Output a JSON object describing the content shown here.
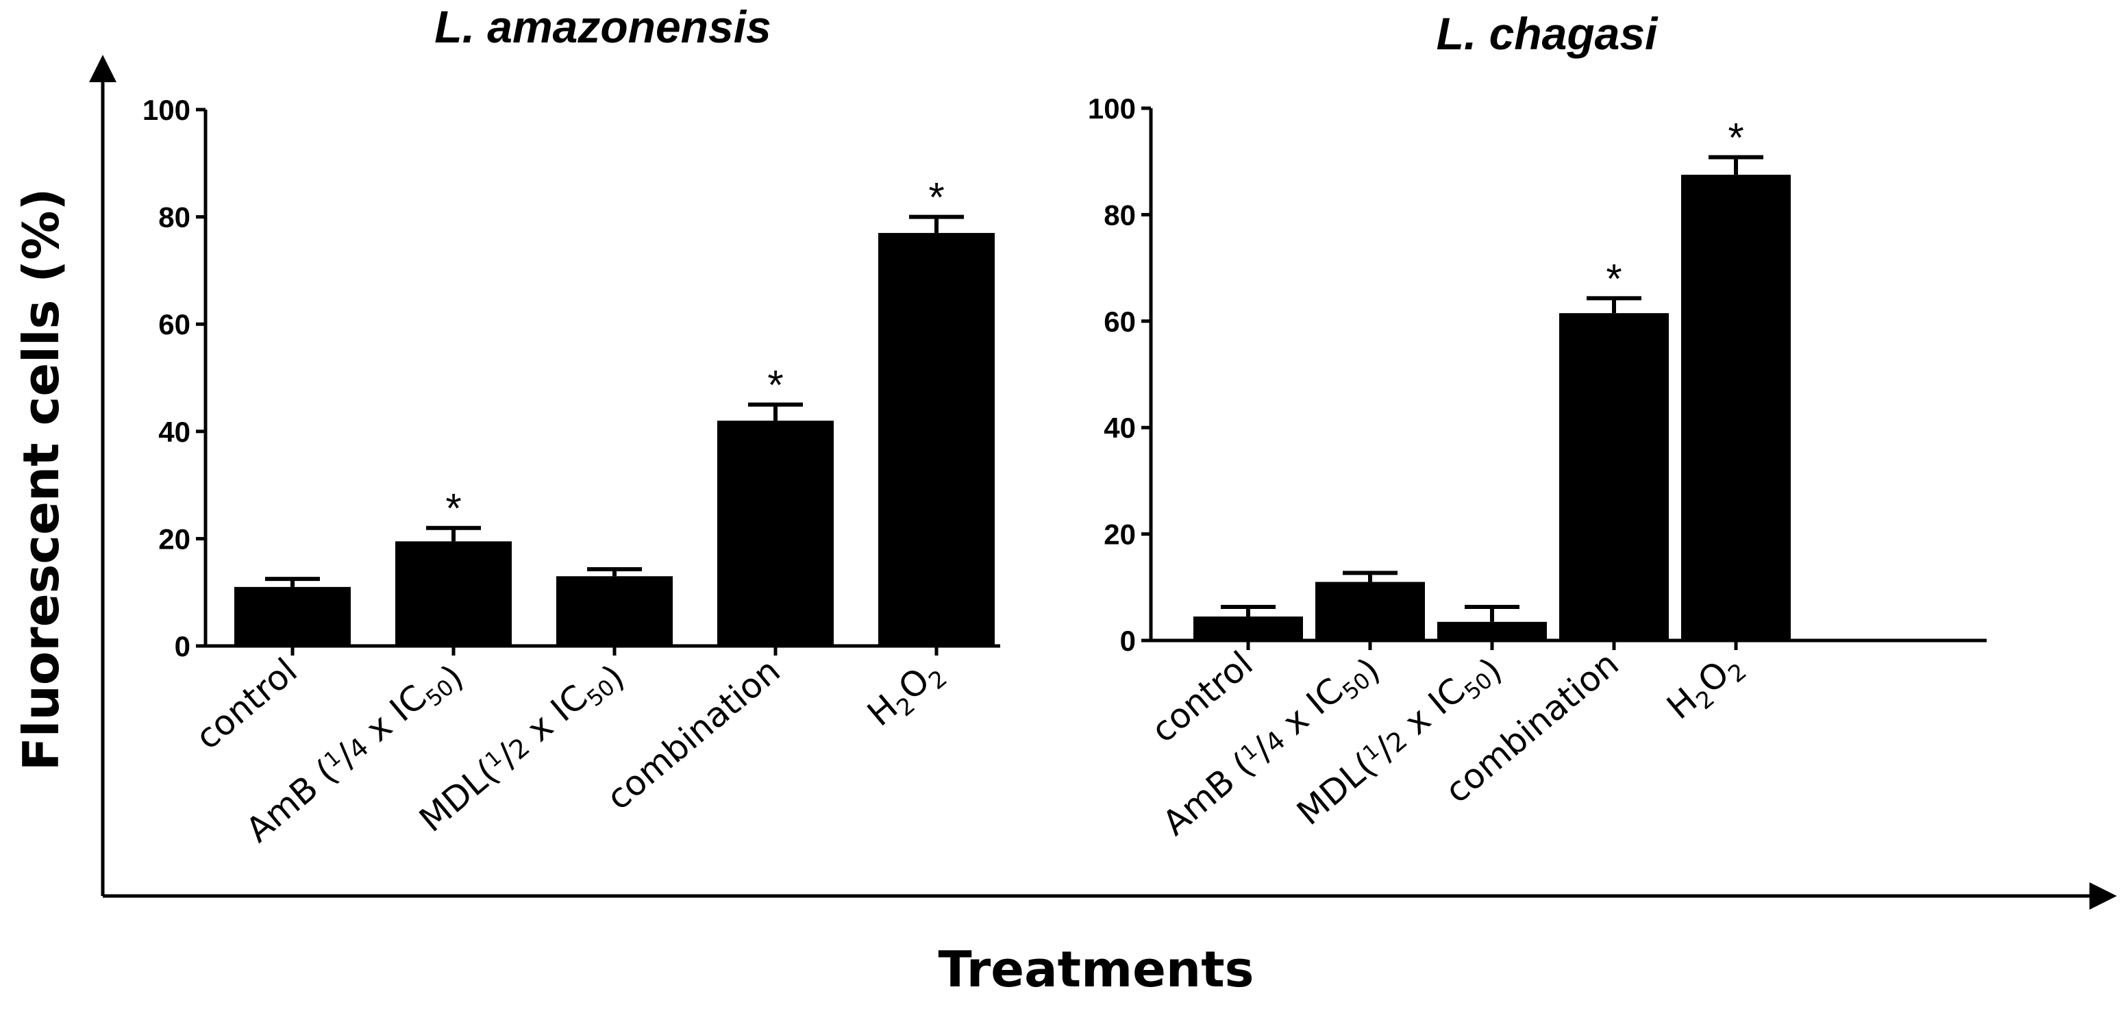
{
  "figure": {
    "y_title": "Fluorescent cells (%)",
    "x_title": "Treatments"
  },
  "chart_data": [
    {
      "type": "bar",
      "title": "L. amazonensis",
      "ylabel": "Fluorescent cells (%)",
      "xlabel": "Treatments",
      "ylim": [
        0,
        100
      ],
      "yticks": [
        "0",
        "20",
        "40",
        "60",
        "80",
        "100"
      ],
      "categories": [
        "control",
        "AmB (1/4 x IC50)",
        "MDL(1/2 x IC50)",
        "combination",
        "H2O2"
      ],
      "values": [
        11,
        19.5,
        13,
        42,
        77
      ],
      "errors": [
        1.5,
        2.5,
        1.3,
        3,
        3
      ],
      "significance": [
        "",
        "*",
        "",
        "*",
        "*"
      ]
    },
    {
      "type": "bar",
      "title": "L. chagasi",
      "ylabel": "Fluorescent cells (%)",
      "xlabel": "Treatments",
      "ylim": [
        0,
        100
      ],
      "yticks": [
        "0",
        "20",
        "40",
        "60",
        "80",
        "100"
      ],
      "categories": [
        "control",
        "AmB (1/4 x IC50)",
        "MDL(1/2 x IC50)",
        "combination",
        "H2O2"
      ],
      "values": [
        4.5,
        11,
        3.5,
        61.5,
        87.5
      ],
      "errors": [
        1.8,
        1.7,
        2.8,
        2.8,
        3.3
      ],
      "significance": [
        "",
        "",
        "",
        "*",
        "*"
      ]
    }
  ]
}
